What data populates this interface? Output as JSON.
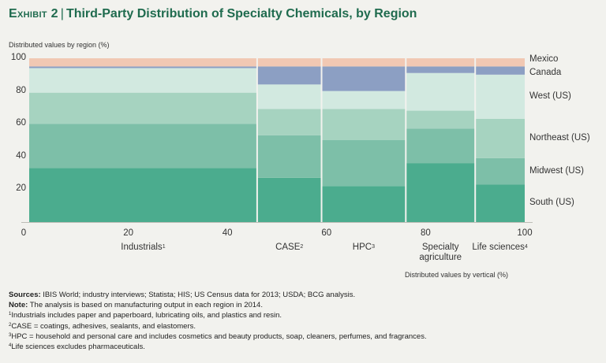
{
  "header": {
    "exhibit": "Exhibit 2",
    "separator": "|",
    "title": "Third-Party Distribution of Specialty Chemicals, by Region"
  },
  "chart_data": {
    "type": "mekko",
    "title": "Third-Party Distribution of Specialty Chemicals, by Region",
    "ylabel": "Distributed values by region (%)",
    "xlabel": "Distributed values by vertical (%)",
    "xlim": [
      0,
      100
    ],
    "ylim": [
      0,
      100
    ],
    "xticks": [
      0,
      20,
      40,
      60,
      80,
      100
    ],
    "yticks": [
      20,
      40,
      60,
      80,
      100
    ],
    "columns": [
      {
        "name": "Industrials",
        "note": "1",
        "x_start": 0,
        "x_end": 46
      },
      {
        "name": "CASE",
        "note": "2",
        "x_start": 46,
        "x_end": 59
      },
      {
        "name": "HPC",
        "note": "3",
        "x_start": 59,
        "x_end": 76
      },
      {
        "name": "Specialty agriculture",
        "note": "",
        "x_start": 76,
        "x_end": 90
      },
      {
        "name": "Life sciences",
        "note": "4",
        "x_start": 90,
        "x_end": 100
      }
    ],
    "series": [
      {
        "name": "South (US)",
        "color": "#4bac8e",
        "values": [
          33,
          27,
          22,
          36,
          23
        ]
      },
      {
        "name": "Midwest (US)",
        "color": "#7dbfa8",
        "values": [
          27,
          26,
          28,
          21,
          16
        ]
      },
      {
        "name": "Northeast (US)",
        "color": "#a6d3c0",
        "values": [
          19,
          16,
          19,
          11,
          24
        ]
      },
      {
        "name": "West (US)",
        "color": "#d2e9e0",
        "values": [
          15,
          15,
          11,
          23,
          27
        ]
      },
      {
        "name": "Canada",
        "color": "#8c9fc3",
        "values": [
          1,
          11,
          15,
          4,
          5
        ]
      },
      {
        "name": "Mexico",
        "color": "#f1c8b3",
        "values": [
          5,
          5,
          5,
          5,
          5
        ]
      }
    ]
  },
  "notes": {
    "sources_label": "Sources:",
    "sources_text": "IBIS World; industry interviews; Statista; HIS; US Census data for 2013; USDA; BCG analysis.",
    "note_label": "Note:",
    "note_text": "The analysis is based on manufacturing output in each region in 2014.",
    "footnotes": [
      {
        "mark": "1",
        "text": "Industrials includes paper and paperboard, lubricating oils, and plastics and resin."
      },
      {
        "mark": "2",
        "text": "CASE = coatings, adhesives, sealants, and elastomers."
      },
      {
        "mark": "3",
        "text": "HPC = household and personal care and includes cosmetics and beauty products, soap, cleaners, perfumes, and fragrances."
      },
      {
        "mark": "4",
        "text": "Life sciences excludes pharmaceuticals."
      }
    ]
  }
}
